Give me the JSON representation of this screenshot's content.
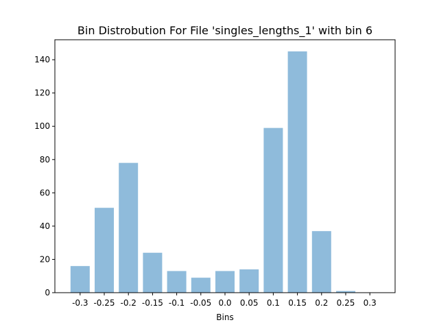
{
  "chart_data": {
    "type": "bar",
    "title": "Bin Distrobution For File 'singles_lengths_1' with bin 6",
    "xlabel": "Bins",
    "ylabel": "",
    "categories": [
      "-0.3",
      "-0.25",
      "-0.2",
      "-0.15",
      "-0.1",
      "-0.05",
      "0.0",
      "0.05",
      "0.1",
      "0.15",
      "0.2",
      "0.25",
      "0.3"
    ],
    "values": [
      16,
      51,
      78,
      24,
      13,
      9,
      13,
      14,
      99,
      145,
      37,
      1,
      0
    ],
    "ylim": [
      0,
      152
    ],
    "yticks": [
      "0",
      "20",
      "40",
      "60",
      "80",
      "100",
      "120",
      "140"
    ],
    "ytick_values": [
      0,
      20,
      40,
      60,
      80,
      100,
      120,
      140
    ],
    "bar_color": "#8fbbdb",
    "grid": false,
    "legend": "none"
  }
}
